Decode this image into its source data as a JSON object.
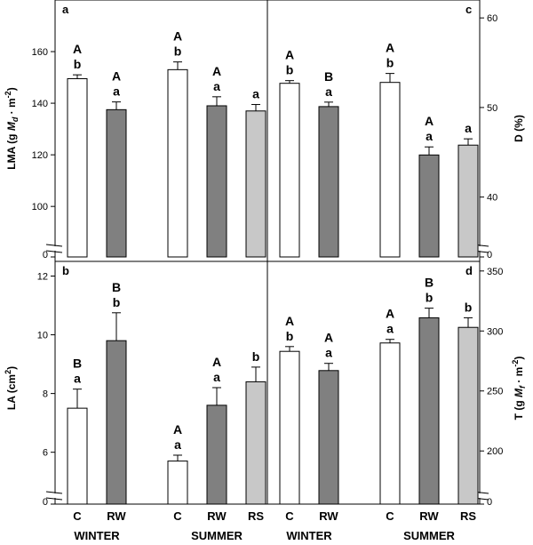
{
  "chart_data": [
    {
      "panel": "a",
      "type": "bar",
      "ylabel": "LMA (g M_d · m⁻²)",
      "ylabel_parts": {
        "pre": "LMA (g ",
        "M": "M",
        "sub": "d",
        "post": " · m",
        "sup": "-2",
        "end": ")"
      },
      "yaxis_side": "left",
      "ylim": [
        88,
        180
      ],
      "axis_break": true,
      "bottom_tick": "0",
      "ticks": [
        100,
        120,
        140,
        160
      ],
      "categories": [
        "C",
        "RW",
        "C",
        "RW",
        "RS"
      ],
      "groups": [
        "WINTER",
        "SUMMER"
      ],
      "values": [
        149.5,
        137.5,
        153,
        139,
        137
      ],
      "errors": [
        1.5,
        3,
        3,
        3.5,
        2.5
      ],
      "fills": [
        "#ffffff",
        "#808080",
        "#ffffff",
        "#808080",
        "#c8c8c8"
      ],
      "upper_letters": [
        "A",
        "A",
        "A",
        "A",
        ""
      ],
      "lower_letters": [
        "b",
        "a",
        "b",
        "a",
        "a"
      ]
    },
    {
      "panel": "c",
      "type": "bar",
      "ylabel": "D (%)",
      "ylabel_parts": {
        "pre": "D (%)",
        "M": "",
        "sub": "",
        "post": "",
        "sup": "",
        "end": ""
      },
      "yaxis_side": "right",
      "ylim": [
        35.5,
        62
      ],
      "axis_break": true,
      "bottom_tick": "0",
      "ticks": [
        40,
        50,
        60
      ],
      "categories": [
        "C",
        "RW",
        "C",
        "RW",
        "RS"
      ],
      "groups": [
        "WINTER",
        "SUMMER"
      ],
      "values": [
        52.7,
        50.1,
        52.8,
        44.7,
        45.8
      ],
      "errors": [
        0.3,
        0.5,
        1.0,
        0.9,
        0.7
      ],
      "fills": [
        "#ffffff",
        "#808080",
        "#ffffff",
        "#808080",
        "#c8c8c8"
      ],
      "upper_letters": [
        "A",
        "B",
        "A",
        "A",
        ""
      ],
      "lower_letters": [
        "b",
        "a",
        "b",
        "a",
        "a"
      ]
    },
    {
      "panel": "b",
      "type": "bar",
      "ylabel": "LA (cm²)",
      "ylabel_parts": {
        "pre": "LA (cm",
        "M": "",
        "sub": "",
        "post": "",
        "sup": "2",
        "end": ")"
      },
      "yaxis_side": "left",
      "ylim": [
        4.9,
        12.5
      ],
      "axis_break": true,
      "bottom_tick": "0",
      "ticks": [
        6,
        8,
        10,
        12
      ],
      "categories": [
        "C",
        "RW",
        "C",
        "RW",
        "RS"
      ],
      "groups": [
        "WINTER",
        "SUMMER"
      ],
      "values": [
        7.5,
        9.8,
        5.7,
        7.6,
        8.4
      ],
      "errors": [
        0.65,
        0.95,
        0.2,
        0.6,
        0.5
      ],
      "fills": [
        "#ffffff",
        "#808080",
        "#ffffff",
        "#808080",
        "#c8c8c8"
      ],
      "upper_letters": [
        "B",
        "B",
        "A",
        "A",
        ""
      ],
      "lower_letters": [
        "a",
        "b",
        "a",
        "a",
        "b"
      ]
    },
    {
      "panel": "d",
      "type": "bar",
      "ylabel": "T (g M_f · m⁻²)",
      "ylabel_parts": {
        "pre": "T (g ",
        "M": "M",
        "sub": "f",
        "post": " · m",
        "sup": "-2",
        "end": ")"
      },
      "yaxis_side": "right",
      "ylim": [
        172,
        358
      ],
      "axis_break": true,
      "bottom_tick": "0",
      "ticks": [
        200,
        250,
        300,
        350
      ],
      "categories": [
        "C",
        "RW",
        "C",
        "RW",
        "RS"
      ],
      "groups": [
        "WINTER",
        "SUMMER"
      ],
      "values": [
        283,
        267,
        290,
        311,
        303
      ],
      "errors": [
        4,
        6,
        3,
        8,
        8
      ],
      "fills": [
        "#ffffff",
        "#808080",
        "#ffffff",
        "#808080",
        "#c8c8c8"
      ],
      "upper_letters": [
        "A",
        "A",
        "A",
        "B",
        ""
      ],
      "lower_letters": [
        "b",
        "a",
        "a",
        "b",
        "b"
      ]
    }
  ]
}
